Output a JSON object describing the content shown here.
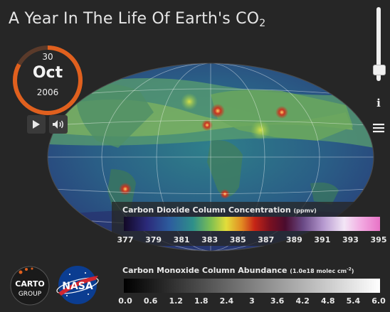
{
  "header": {
    "title": "A Year In The Life Of Earth's CO",
    "title_subscript": "2"
  },
  "date_widget": {
    "day": "30",
    "month": "Oct",
    "year": "2006",
    "ring_progress": 0.83,
    "accent_color": "#e0601e"
  },
  "controls": {
    "play_icon": "play-icon",
    "sound_icon": "speaker-icon",
    "info_label": "i",
    "menu_icon": "hamburger-menu-icon",
    "speed_slider_level": 0.8
  },
  "legend_co2": {
    "title": "Carbon Dioxide Column Concentration",
    "unit": "(ppmv)",
    "ticks": [
      "377",
      "379",
      "381",
      "383",
      "385",
      "387",
      "389",
      "391",
      "393",
      "395"
    ]
  },
  "legend_co": {
    "title": "Carbon Monoxide Column Abundance",
    "unit": "(1.0e18 molec cm",
    "unit_exp": "-2",
    "unit_close": ")",
    "ticks": [
      "0.0",
      "0.6",
      "1.2",
      "1.8",
      "2.4",
      "3",
      "3.6",
      "4.2",
      "4.8",
      "5.4",
      "6.0"
    ]
  },
  "logos": {
    "carto_line1": "CARTO",
    "carto_line2": "GROUP",
    "nasa": "NASA"
  }
}
